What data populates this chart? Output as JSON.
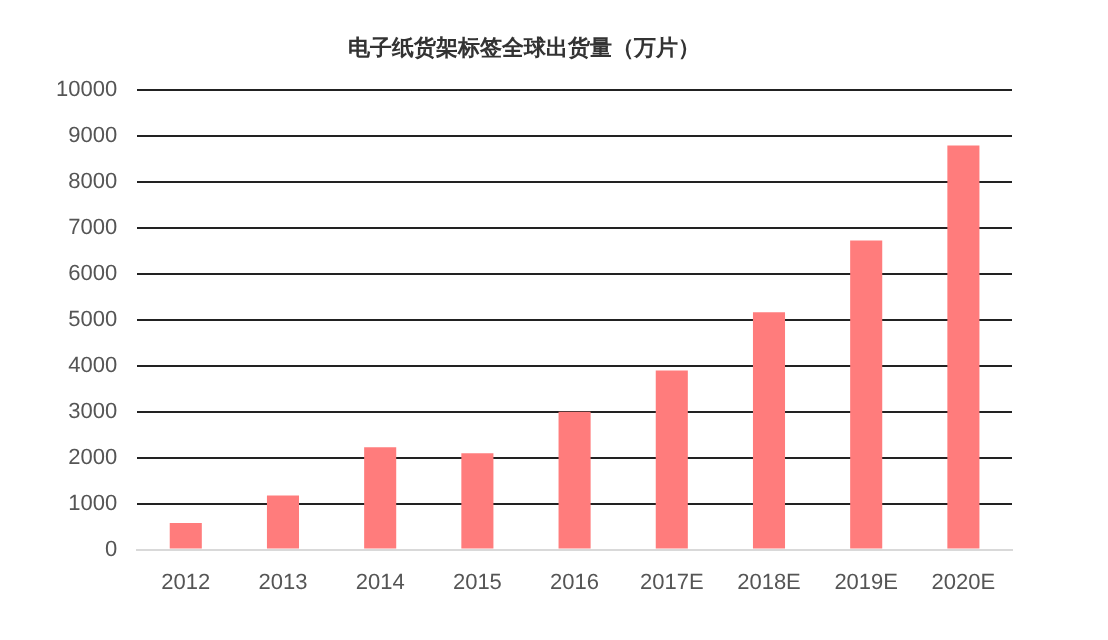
{
  "chart_data": {
    "type": "bar",
    "title": "电子纸货架标签全球出货量（万片）",
    "categories": [
      "2012",
      "2013",
      "2014",
      "2015",
      "2016",
      "2017E",
      "2018E",
      "2019E",
      "2020E"
    ],
    "values": [
      580,
      1180,
      2230,
      2100,
      3000,
      3900,
      5170,
      6730,
      8800
    ],
    "color": "#ff7c7c",
    "ylim": [
      0,
      10000
    ],
    "yticks": [
      0,
      1000,
      2000,
      3000,
      4000,
      5000,
      6000,
      7000,
      8000,
      9000,
      10000
    ],
    "grid": "y",
    "legend": false
  }
}
